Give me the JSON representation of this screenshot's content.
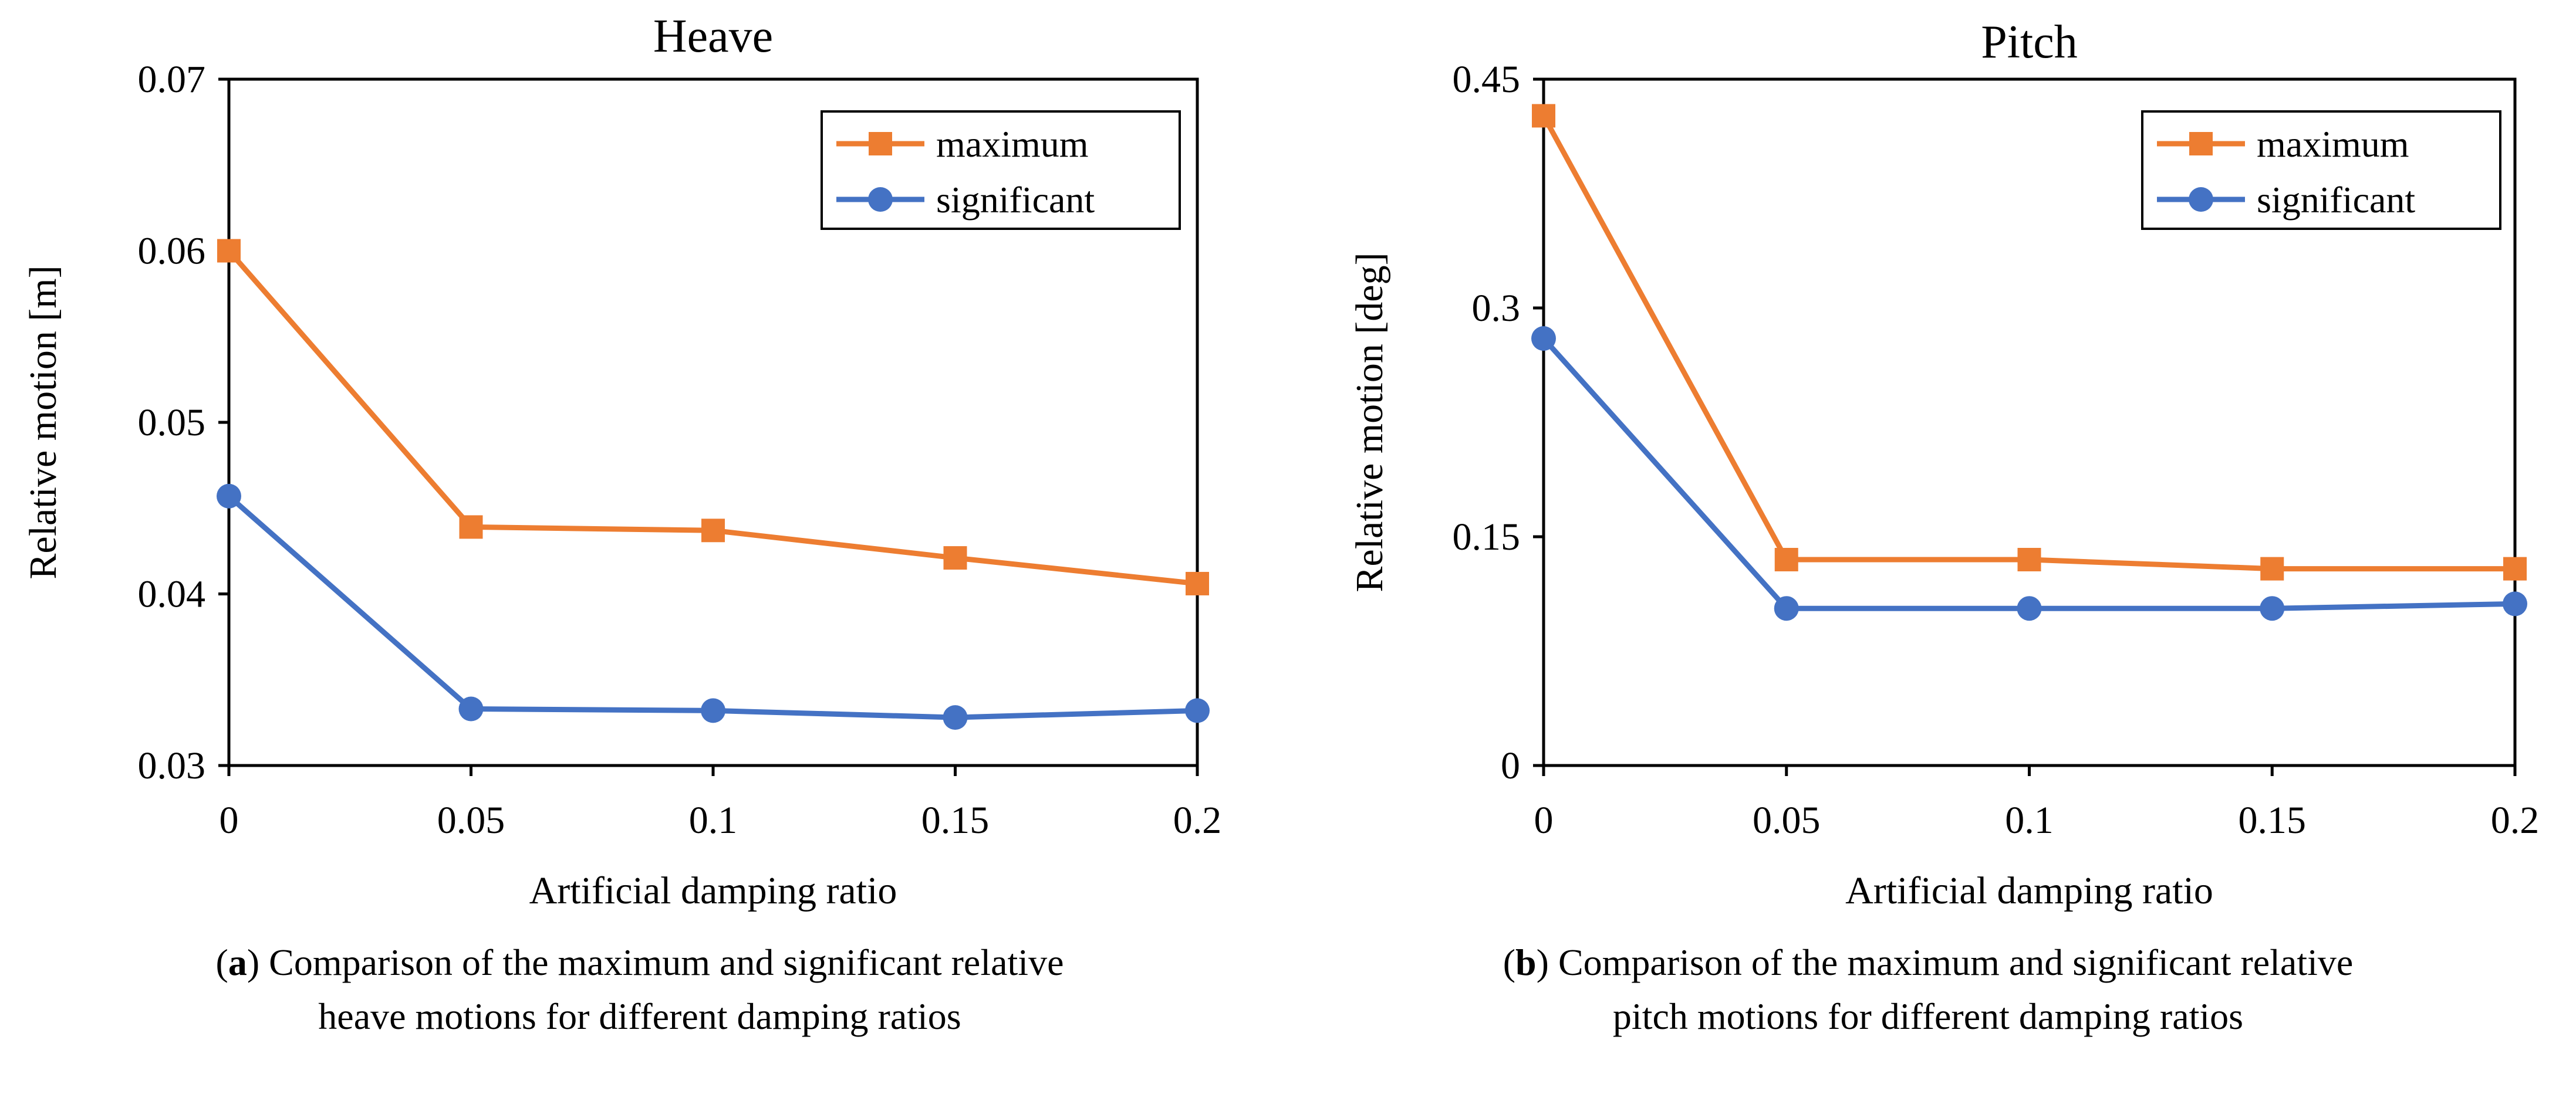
{
  "chart_data": [
    {
      "type": "line",
      "title": "Heave",
      "xlabel": "Artificial  damping ratio",
      "ylabel": "Relative  motion [m]",
      "x": [
        0,
        0.05,
        0.1,
        0.15,
        0.2
      ],
      "x_tick_labels": [
        "0",
        "0.05",
        "0.1",
        "0.15",
        "0.2"
      ],
      "ylim": [
        0.03,
        0.07
      ],
      "y_ticks": [
        0.03,
        0.04,
        0.05,
        0.06,
        0.07
      ],
      "y_tick_labels": [
        "0.03",
        "0.04",
        "0.05",
        "0.06",
        "0.07"
      ],
      "grid": false,
      "legend_position": "top-right",
      "series": [
        {
          "name": "maximum",
          "color": "#ED7D31",
          "marker": "square",
          "values": [
            0.06,
            0.0439,
            0.0437,
            0.0421,
            0.0406
          ]
        },
        {
          "name": "significant",
          "color": "#4472C4",
          "marker": "circle",
          "values": [
            0.0457,
            0.0333,
            0.0332,
            0.0328,
            0.0332
          ]
        }
      ]
    },
    {
      "type": "line",
      "title": "Pitch",
      "xlabel": "Artificial  damping ratio",
      "ylabel": "Relative  motion [deg]",
      "x": [
        0,
        0.05,
        0.1,
        0.15,
        0.2
      ],
      "x_tick_labels": [
        "0",
        "0.05",
        "0.1",
        "0.15",
        "0.2"
      ],
      "ylim": [
        0,
        0.45
      ],
      "y_ticks": [
        0,
        0.15,
        0.3,
        0.45
      ],
      "y_tick_labels": [
        "0",
        "0.15",
        "0.3",
        "0.45"
      ],
      "grid": false,
      "legend_position": "top-right",
      "series": [
        {
          "name": "maximum",
          "color": "#ED7D31",
          "marker": "square",
          "values": [
            0.426,
            0.135,
            0.135,
            0.129,
            0.129
          ]
        },
        {
          "name": "significant",
          "color": "#4472C4",
          "marker": "circle",
          "values": [
            0.28,
            0.103,
            0.103,
            0.103,
            0.106
          ]
        }
      ]
    }
  ],
  "captions": [
    {
      "label": "a",
      "line1": " Comparison of the maximum and significant relative",
      "line2": "heave motions for different damping ratios"
    },
    {
      "label": "b",
      "line1": " Comparison of the maximum and significant relative",
      "line2": "pitch motions for different damping ratios"
    }
  ]
}
